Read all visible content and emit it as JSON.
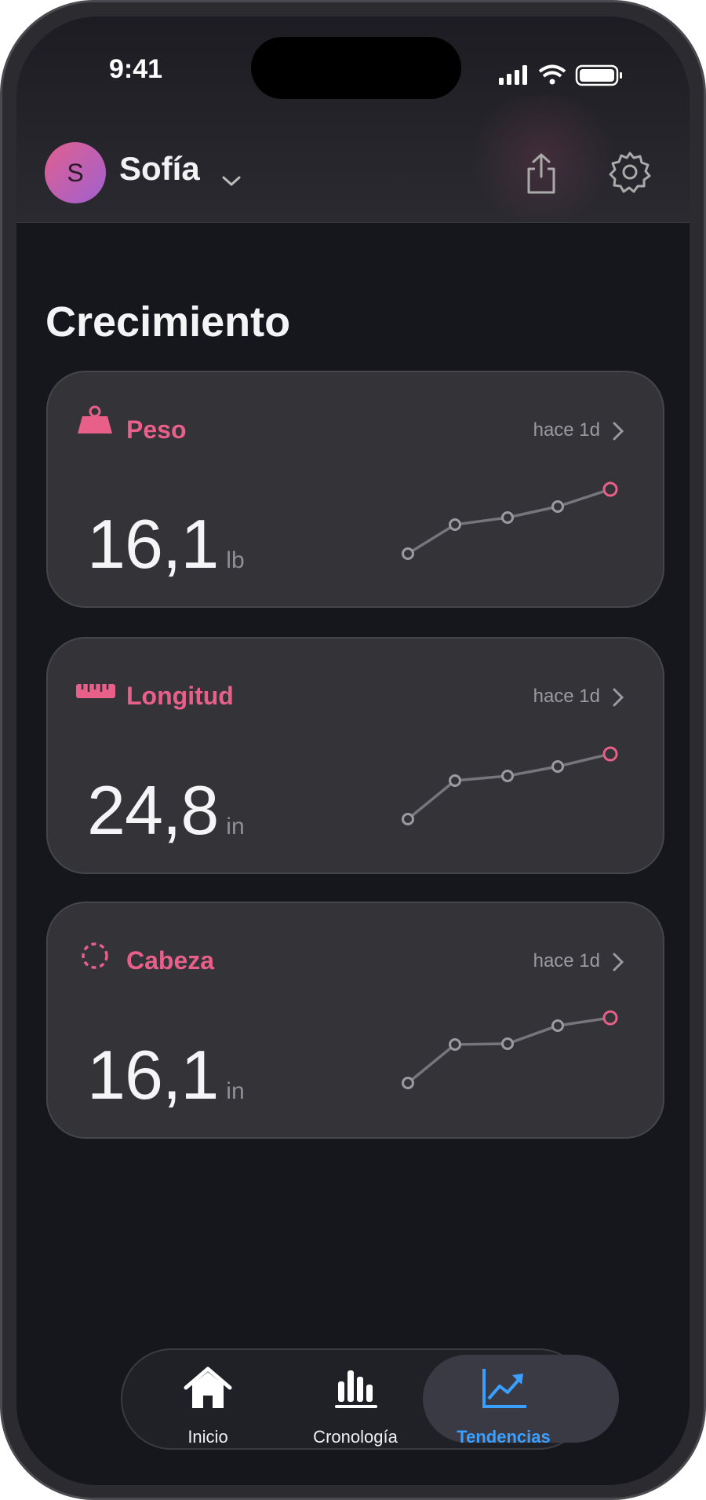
{
  "status_bar": {
    "time": "9:41"
  },
  "header": {
    "avatar_initial": "S",
    "name": "Sofía"
  },
  "section_title": "Crecimiento",
  "cards": [
    {
      "label": "Peso",
      "updated": "hace 1d",
      "value": "16,1",
      "unit": "lb"
    },
    {
      "label": "Longitud",
      "updated": "hace 1d",
      "value": "24,8",
      "unit": "in"
    },
    {
      "label": "Cabeza",
      "updated": "hace 1d",
      "value": "16,1",
      "unit": "in"
    }
  ],
  "tabs": [
    "Inicio",
    "Cronología",
    "Tendencias"
  ]
}
